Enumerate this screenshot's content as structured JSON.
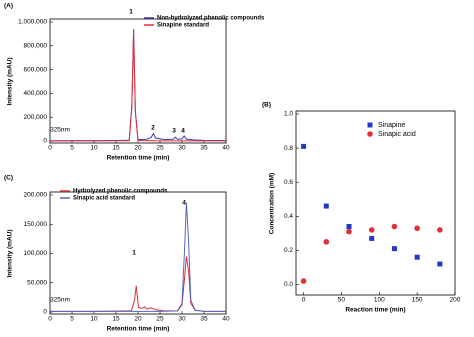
{
  "chart_data": [
    {
      "type": "line",
      "panel_label": "(A)",
      "x_label": "Retention time (min)",
      "y_label": "Intensity (mAU)",
      "annotations": [
        "1",
        "2",
        "3",
        "4",
        "325nm"
      ],
      "xlim": [
        0,
        40
      ],
      "xticks": [
        0,
        5,
        10,
        15,
        20,
        25,
        30,
        35,
        40
      ],
      "ylim": [
        0,
        1000000
      ],
      "yticks": [
        0,
        {
          "value": 200000,
          "label": "200,000"
        },
        {
          "value": 400000,
          "label": "400,000"
        },
        {
          "value": 600000,
          "label": "600,000"
        },
        {
          "value": 800000,
          "label": "800,000"
        },
        {
          "value": 1000000,
          "label": "1,000,000"
        }
      ],
      "series": [
        {
          "name": "Non-hydrolyzed phenolic compounds",
          "color": "#3a3aa8",
          "x": [
            0,
            5,
            10,
            15,
            18,
            18.6,
            19,
            19.4,
            20,
            22,
            23,
            23.5,
            24,
            26,
            28,
            28.5,
            29,
            30,
            30.5,
            31,
            33,
            35,
            40
          ],
          "values": [
            2000,
            3000,
            3000,
            4000,
            6000,
            300000,
            940000,
            250000,
            12000,
            15000,
            30000,
            62000,
            25000,
            12000,
            15000,
            32000,
            14000,
            18000,
            42000,
            15000,
            8000,
            5000,
            4000
          ]
        },
        {
          "name": "Sinapine standard",
          "color": "#e0303a",
          "x": [
            0,
            10,
            18,
            18.6,
            19,
            19.4,
            20,
            25,
            40
          ],
          "values": [
            1000,
            1000,
            2000,
            280000,
            930000,
            240000,
            4000,
            1000,
            1000
          ]
        }
      ]
    },
    {
      "type": "scatter",
      "panel_label": "(B)",
      "x_label": "Reaction time (min)",
      "y_label": "Concentration (mM)",
      "xlim": [
        -10,
        200
      ],
      "xticks": [
        0,
        50,
        100,
        150,
        200
      ],
      "ylim": [
        -0.05,
        1.0
      ],
      "yticks": [
        {
          "value": 0,
          "label": "0.0"
        },
        0.2,
        0.4,
        0.6,
        0.8,
        {
          "value": 1,
          "label": "1.0"
        }
      ],
      "legend": "upper right",
      "series": [
        {
          "name": "Sinapine",
          "color": "#2238c8",
          "marker": "square",
          "x": [
            0,
            30,
            60,
            90,
            120,
            150,
            180
          ],
          "values": [
            0.81,
            0.46,
            0.34,
            0.27,
            0.21,
            0.16,
            0.12
          ]
        },
        {
          "name": "Sinapic acid",
          "color": "#e0303a",
          "marker": "circle",
          "x": [
            0,
            30,
            60,
            90,
            120,
            150,
            180
          ],
          "values": [
            0.02,
            0.25,
            0.31,
            0.32,
            0.34,
            0.33,
            0.32
          ]
        }
      ]
    },
    {
      "type": "line",
      "panel_label": "(C)",
      "x_label": "Retention time (min)",
      "y_label": "Intensity (mAU)",
      "annotations": [
        "1",
        "4",
        "325nm"
      ],
      "xlim": [
        0,
        40
      ],
      "xticks": [
        0,
        5,
        10,
        15,
        20,
        25,
        30,
        35,
        40
      ],
      "ylim": [
        0,
        200000
      ],
      "yticks": [
        0,
        {
          "value": 50000,
          "label": "50,000"
        },
        {
          "value": 100000,
          "label": "100,000"
        },
        {
          "value": 150000,
          "label": "150,000"
        },
        {
          "value": 200000,
          "label": "200,000"
        }
      ],
      "series": [
        {
          "name": "Hydrolyzed phenolic compounds",
          "color": "#e0303a",
          "x": [
            0,
            10,
            18.5,
            19.2,
            19.6,
            20.1,
            21,
            21.5,
            22,
            23,
            24,
            26,
            29,
            30,
            30.6,
            31,
            31.5,
            32,
            33,
            35,
            40
          ],
          "values": [
            1000,
            1000,
            2000,
            20000,
            45000,
            8000,
            6000,
            9000,
            5000,
            7000,
            4000,
            2000,
            2000,
            12000,
            60000,
            95000,
            70000,
            15000,
            3000,
            1000,
            1000
          ]
        },
        {
          "name": "Sinapic acid standard",
          "color": "#5068b8",
          "x": [
            0,
            10,
            20,
            25,
            29,
            30,
            30.6,
            31,
            31.5,
            32,
            33,
            35,
            40
          ],
          "values": [
            1000,
            1000,
            1000,
            1000,
            2000,
            15000,
            110000,
            187000,
            120000,
            20000,
            3000,
            1000,
            1000
          ]
        }
      ]
    }
  ]
}
